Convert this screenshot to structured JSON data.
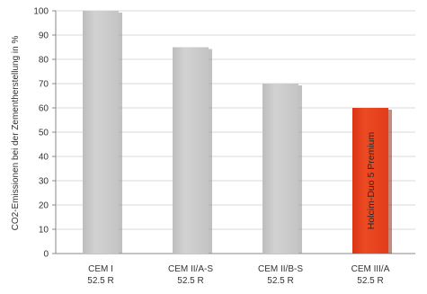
{
  "chart_data": {
    "type": "bar",
    "ylabel": "CO2-Emissionen bei der Zementherstellung in %",
    "ylim": [
      0,
      100
    ],
    "yticks": [
      0,
      10,
      20,
      30,
      40,
      50,
      60,
      70,
      80,
      90,
      100
    ],
    "grid": true,
    "categories": [
      {
        "line1": "CEM I",
        "line2": "52.5 R"
      },
      {
        "line1": "CEM II/A-S",
        "line2": "52.5 R"
      },
      {
        "line1": "CEM II/B-S",
        "line2": "52.5 R"
      },
      {
        "line1": "CEM III/A",
        "line2": "52.5 R"
      }
    ],
    "values": [
      100,
      85,
      70,
      60
    ],
    "bar_colors": [
      "#c8c8c8",
      "#c8c8c8",
      "#c8c8c8",
      "#e8401c"
    ],
    "bar_inner_labels": [
      "",
      "",
      "",
      "Holcim-Duo 5 Premium"
    ]
  }
}
